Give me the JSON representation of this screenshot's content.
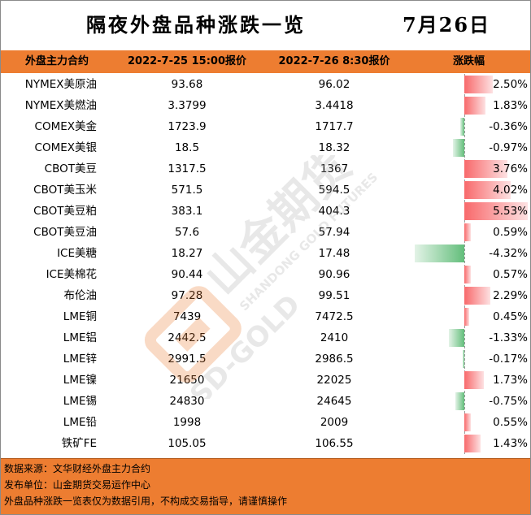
{
  "title": "隔夜外盘品种涨跌一览",
  "date": "7月26日",
  "header": {
    "name": "外盘主力合约",
    "price1": "2022-7-25 15:00报价",
    "price2": "2022-7-26 8:30报价",
    "change": "涨跌幅"
  },
  "rows": [
    {
      "name": "NYMEX美原油",
      "price1": "93.68",
      "price2": "96.02",
      "change": "2.50%",
      "change_value": 2.5
    },
    {
      "name": "NYMEX美燃油",
      "price1": "3.3799",
      "price2": "3.4418",
      "change": "1.83%",
      "change_value": 1.83
    },
    {
      "name": "COMEX美金",
      "price1": "1723.9",
      "price2": "1717.7",
      "change": "-0.36%",
      "change_value": -0.36
    },
    {
      "name": "COMEX美银",
      "price1": "18.5",
      "price2": "18.32",
      "change": "-0.97%",
      "change_value": -0.97
    },
    {
      "name": "CBOT美豆",
      "price1": "1317.5",
      "price2": "1367",
      "change": "3.76%",
      "change_value": 3.76
    },
    {
      "name": "CBOT美玉米",
      "price1": "571.5",
      "price2": "594.5",
      "change": "4.02%",
      "change_value": 4.02
    },
    {
      "name": "CBOT美豆粕",
      "price1": "383.1",
      "price2": "404.3",
      "change": "5.53%",
      "change_value": 5.53
    },
    {
      "name": "CBOT美豆油",
      "price1": "57.6",
      "price2": "57.94",
      "change": "0.59%",
      "change_value": 0.59
    },
    {
      "name": "ICE美糖",
      "price1": "18.27",
      "price2": "17.48",
      "change": "-4.32%",
      "change_value": -4.32
    },
    {
      "name": "ICE美棉花",
      "price1": "90.44",
      "price2": "90.96",
      "change": "0.57%",
      "change_value": 0.57
    },
    {
      "name": "布伦油",
      "price1": "97.28",
      "price2": "99.51",
      "change": "2.29%",
      "change_value": 2.29
    },
    {
      "name": "LME铜",
      "price1": "7439",
      "price2": "7472.5",
      "change": "0.45%",
      "change_value": 0.45
    },
    {
      "name": "LME铝",
      "price1": "2442.5",
      "price2": "2410",
      "change": "-1.33%",
      "change_value": -1.33
    },
    {
      "name": "LME锌",
      "price1": "2991.5",
      "price2": "2986.5",
      "change": "-0.17%",
      "change_value": -0.17
    },
    {
      "name": "LME镍",
      "price1": "21650",
      "price2": "22025",
      "change": "1.73%",
      "change_value": 1.73
    },
    {
      "name": "LME锡",
      "price1": "24830",
      "price2": "24645",
      "change": "-0.75%",
      "change_value": -0.75
    },
    {
      "name": "LME铅",
      "price1": "1998",
      "price2": "2009",
      "change": "0.55%",
      "change_value": 0.55
    },
    {
      "name": "铁矿FE",
      "price1": "105.05",
      "price2": "106.55",
      "change": "1.43%",
      "change_value": 1.43
    }
  ],
  "footer": {
    "source": "数据来源：文华财经外盘主力合约",
    "publisher": "发布单位：山金期货交易运作中心",
    "disclaimer": "外盘品种涨跌一览表仅为数据引用，不构成交易指导，请谨慎操作"
  },
  "watermark": {
    "text_cn": "山金期货",
    "text_en": "SHANDONG GOLD FUTURES",
    "text_brand": "SD-GOLD",
    "color": "#ed7d31"
  },
  "colors": {
    "header_bg": "#ed7d31",
    "positive": "#f8696b",
    "negative": "#63be7b"
  }
}
